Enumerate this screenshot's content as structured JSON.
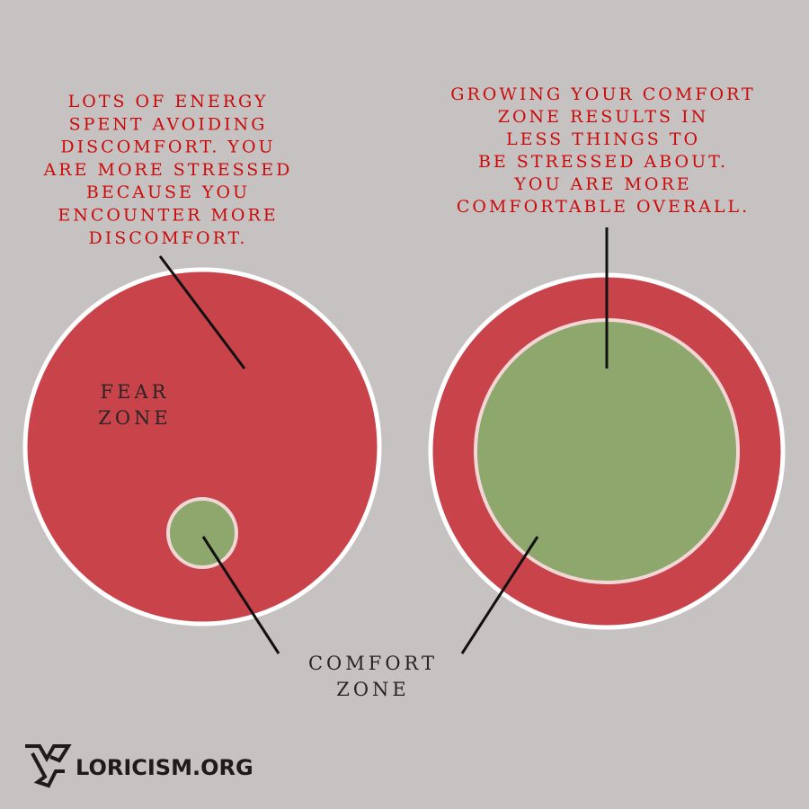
{
  "left_note": {
    "lines": [
      "LOTS OF ENERGY",
      "SPENT AVOIDING",
      "DISCOMFORT. YOU",
      "ARE MORE STRESSED",
      "BECAUSE YOU",
      "ENCOUNTER MORE",
      "DISCOMFORT."
    ]
  },
  "right_note": {
    "lines": [
      "GROWING YOUR COMFORT",
      "ZONE RESULTS IN",
      "LESS THINGS TO",
      "BE STRESSED ABOUT.",
      "YOU ARE MORE",
      "COMFORTABLE OVERALL."
    ]
  },
  "fear_zone": {
    "lines": [
      "FEAR",
      "ZONE"
    ]
  },
  "comfort_zone": {
    "lines": [
      "COMFORT",
      "ZONE"
    ]
  },
  "footer": {
    "brand": "LORICISM.ORG"
  }
}
